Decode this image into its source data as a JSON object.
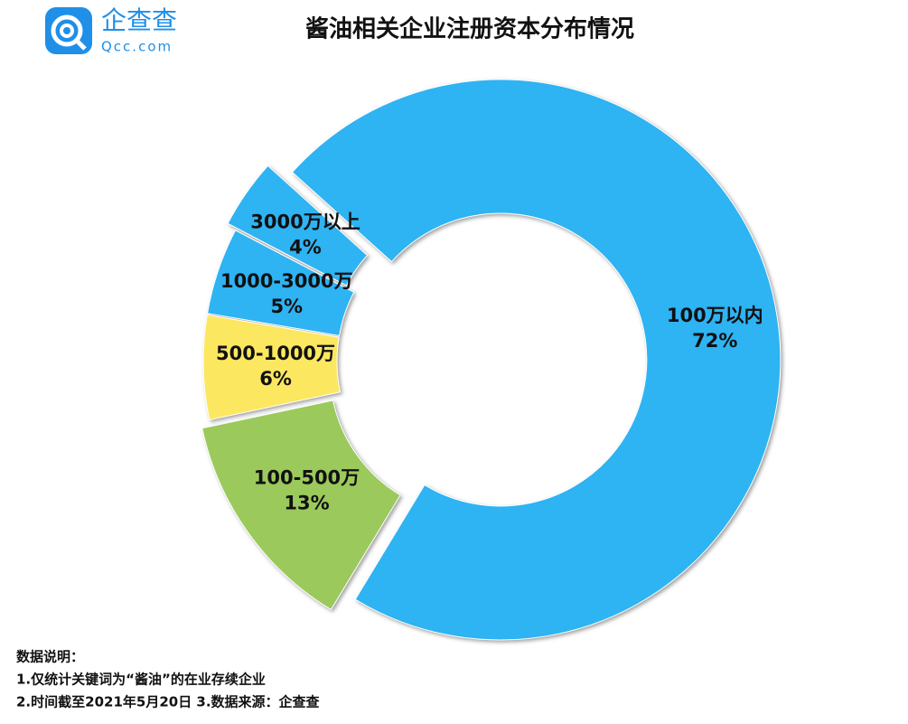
{
  "header": {
    "logo_text": "企查查",
    "logo_url": "Qcc.com"
  },
  "chart_data": {
    "type": "donut",
    "title": "酱油相关企业注册资本分布情况",
    "categories": [
      "100万以内",
      "100-500万",
      "500-1000万",
      "1000-3000万",
      "3000万以上"
    ],
    "values": [
      72,
      13,
      6,
      5,
      4
    ],
    "value_labels": [
      "72%",
      "13%",
      "6%",
      "5%",
      "4%"
    ],
    "colors": [
      "#2db3f3",
      "#9bc95b",
      "#fce760",
      "#2db3f3",
      "#2db3f3"
    ]
  },
  "notes": [
    "数据说明：",
    "1.仅统计关键词为“酱油”的在业存续企业",
    "2.时间截至2021年5月20日  3.数据来源：企查查"
  ]
}
